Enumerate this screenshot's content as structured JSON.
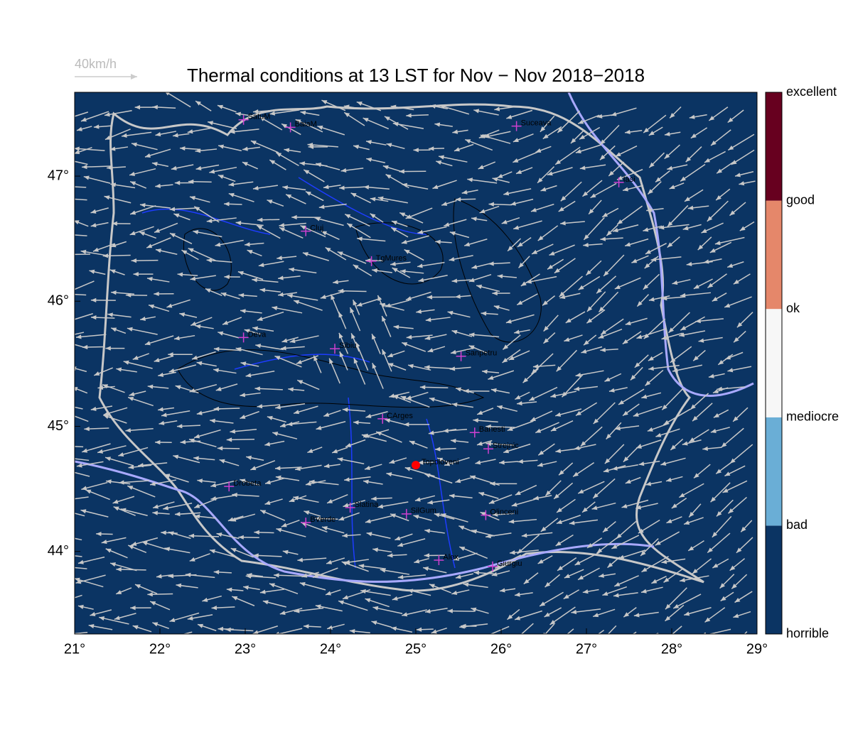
{
  "map": {
    "title": "Thermal conditions at 13 LST for Nov − Nov  2018−2018",
    "wind_legend": "40km/h",
    "background": "#0b3463",
    "xlim": [
      21,
      29
    ],
    "ylim": [
      43.34,
      47.67
    ],
    "xticks": [
      {
        "value": 21,
        "label": "21°"
      },
      {
        "value": 22,
        "label": "22°"
      },
      {
        "value": 23,
        "label": "23°"
      },
      {
        "value": 24,
        "label": "24°"
      },
      {
        "value": 25,
        "label": "25°"
      },
      {
        "value": 26,
        "label": "26°"
      },
      {
        "value": 27,
        "label": "27°"
      },
      {
        "value": 28,
        "label": "28°"
      },
      {
        "value": 29,
        "label": "29°"
      }
    ],
    "yticks": [
      {
        "value": 44,
        "label": "44°"
      },
      {
        "value": 45,
        "label": "45°"
      },
      {
        "value": 46,
        "label": "46°"
      },
      {
        "value": 47,
        "label": "47°"
      }
    ],
    "colorbar": {
      "labels": [
        "horrible",
        "bad",
        "mediocre",
        "ok",
        "good",
        "excellent"
      ],
      "colors": [
        "#0b3463",
        "#6aaed6",
        "#f7f7f7",
        "#e5876a",
        "#67001f"
      ]
    },
    "stations": [
      {
        "name": "SatuM",
        "lon": 22.98,
        "lat": 47.45
      },
      {
        "name": "BaiaM",
        "lon": 23.53,
        "lat": 47.39
      },
      {
        "name": "Suceava",
        "lon": 26.18,
        "lat": 47.4
      },
      {
        "name": "Iasi",
        "lon": 27.38,
        "lat": 46.95
      },
      {
        "name": "Cluj",
        "lon": 23.71,
        "lat": 46.56
      },
      {
        "name": "TgMures",
        "lon": 24.48,
        "lat": 46.32
      },
      {
        "name": "Deva",
        "lon": 22.98,
        "lat": 45.71
      },
      {
        "name": "Sibiu",
        "lon": 24.05,
        "lat": 45.62
      },
      {
        "name": "Sanpetru",
        "lon": 25.53,
        "lat": 45.56
      },
      {
        "name": "CArges",
        "lon": 24.61,
        "lat": 45.06
      },
      {
        "name": "Banesti",
        "lon": 25.69,
        "lat": 44.95
      },
      {
        "name": "Strejnic",
        "lon": 25.85,
        "lat": 44.82
      },
      {
        "name": "Drobeta",
        "lon": 22.81,
        "lat": 44.52
      },
      {
        "name": "Slatina",
        "lon": 24.23,
        "lat": 44.35
      },
      {
        "name": "SilGum",
        "lon": 24.89,
        "lat": 44.3
      },
      {
        "name": "Olinceni",
        "lon": 25.82,
        "lat": 44.29
      },
      {
        "name": "BVerde",
        "lon": 23.71,
        "lat": 44.23
      },
      {
        "name": "Alex",
        "lon": 25.27,
        "lat": 43.93
      },
      {
        "name": "Giurgiu",
        "lon": 25.9,
        "lat": 43.88
      }
    ],
    "site": {
      "name": "Topoloveni",
      "lon": 25.0,
      "lat": 44.69
    }
  }
}
